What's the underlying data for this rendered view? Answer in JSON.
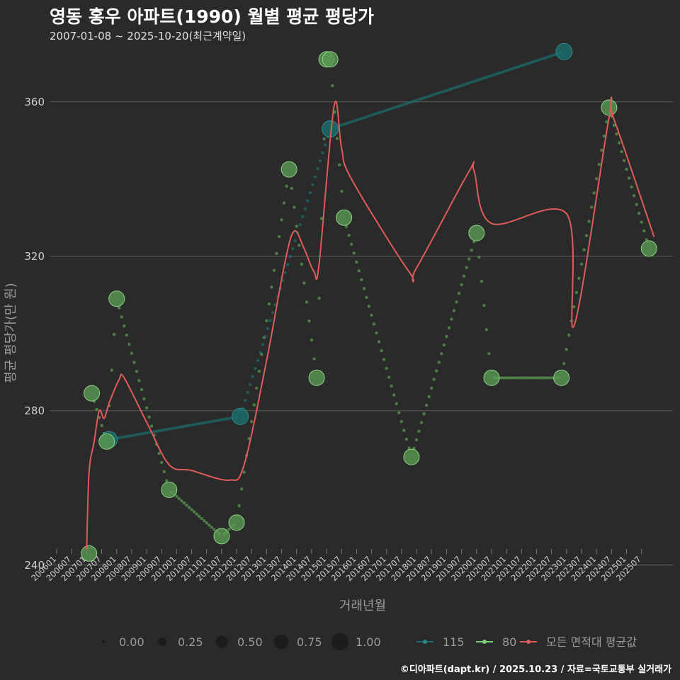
{
  "title": "영동 홍우 아파트(1990) 월별 평균 평당가",
  "subtitle": "2007-01-08 ~ 2025-10-20(최근계약일)",
  "footer": "©디아파트(dapt.kr) / 2025.10.23 / 자료=국토교통부 실거래가",
  "colors": {
    "background": "#2a2a2a",
    "grid": "#5e5e5e",
    "s115": "#1b6b6b",
    "s80": "#5a9a52",
    "s80_line": "#7fd07a",
    "avg": "#e05a5a"
  },
  "chart_data": {
    "type": "line",
    "title": "영동 홍우 아파트(1990) 월별 평균 평당가",
    "xlabel": "거래년월",
    "ylabel": "평균 평당가(만 원)",
    "ylim": [
      235,
      375
    ],
    "yticks": [
      240,
      280,
      320,
      360
    ],
    "xlim": [
      2006.0,
      2026.5
    ],
    "xtick_labels": [
      "200601",
      "200607",
      "200701",
      "200707",
      "200801",
      "200807",
      "200901",
      "200907",
      "201001",
      "201007",
      "201101",
      "201107",
      "201201",
      "201207",
      "201301",
      "201307",
      "201401",
      "201407",
      "201501",
      "201507",
      "201601",
      "201607",
      "201701",
      "201707",
      "201801",
      "201807",
      "201901",
      "201907",
      "202001",
      "202007",
      "202101",
      "202107",
      "202201",
      "202207",
      "202301",
      "202307",
      "202401",
      "202407",
      "202501",
      "202507"
    ],
    "legend": {
      "size_title": "",
      "size_labels": [
        "0.00",
        "0.25",
        "0.50",
        "0.75",
        "1.00"
      ],
      "series_labels": [
        "115",
        "80",
        "모든 면적대 평균값"
      ]
    },
    "series": [
      {
        "name": "115",
        "points": [
          {
            "x": 2007.75,
            "y": 272.5
          },
          {
            "x": 2012.12,
            "y": 278.5
          },
          {
            "x": 2015.12,
            "y": 353
          },
          {
            "x": 2022.92,
            "y": 373
          }
        ]
      },
      {
        "name": "80",
        "points": [
          {
            "x": 2007.08,
            "y": 243
          },
          {
            "x": 2007.17,
            "y": 284.5
          },
          {
            "x": 2007.67,
            "y": 272
          },
          {
            "x": 2008.0,
            "y": 309
          },
          {
            "x": 2009.75,
            "y": 259.5
          },
          {
            "x": 2011.5,
            "y": 247.5
          },
          {
            "x": 2012.0,
            "y": 251
          },
          {
            "x": 2013.75,
            "y": 342.5
          },
          {
            "x": 2014.67,
            "y": 288.5
          },
          {
            "x": 2015.0,
            "y": 371
          },
          {
            "x": 2015.12,
            "y": 371
          },
          {
            "x": 2015.58,
            "y": 330
          },
          {
            "x": 2017.83,
            "y": 268
          },
          {
            "x": 2020.0,
            "y": 326
          },
          {
            "x": 2020.5,
            "y": 288.5
          },
          {
            "x": 2022.83,
            "y": 288.5
          },
          {
            "x": 2024.42,
            "y": 358.5
          },
          {
            "x": 2025.75,
            "y": 322
          }
        ]
      },
      {
        "name": "모든 면적대 평균값",
        "points": [
          {
            "x": 2007.0,
            "y": 244
          },
          {
            "x": 2007.08,
            "y": 264
          },
          {
            "x": 2007.25,
            "y": 272
          },
          {
            "x": 2007.42,
            "y": 280
          },
          {
            "x": 2007.58,
            "y": 278
          },
          {
            "x": 2007.75,
            "y": 282
          },
          {
            "x": 2008.08,
            "y": 288
          },
          {
            "x": 2008.25,
            "y": 288.5
          },
          {
            "x": 2009.0,
            "y": 277
          },
          {
            "x": 2009.75,
            "y": 266
          },
          {
            "x": 2010.5,
            "y": 264.5
          },
          {
            "x": 2011.75,
            "y": 262
          },
          {
            "x": 2012.25,
            "y": 266
          },
          {
            "x": 2013.0,
            "y": 293
          },
          {
            "x": 2013.6,
            "y": 318
          },
          {
            "x": 2013.92,
            "y": 326.5
          },
          {
            "x": 2014.25,
            "y": 322
          },
          {
            "x": 2014.58,
            "y": 316
          },
          {
            "x": 2014.75,
            "y": 318
          },
          {
            "x": 2015.25,
            "y": 359
          },
          {
            "x": 2015.5,
            "y": 348
          },
          {
            "x": 2015.83,
            "y": 340
          },
          {
            "x": 2017.75,
            "y": 316
          },
          {
            "x": 2018.0,
            "y": 317
          },
          {
            "x": 2019.75,
            "y": 342
          },
          {
            "x": 2019.92,
            "y": 342
          },
          {
            "x": 2020.5,
            "y": 328.5
          },
          {
            "x": 2023.0,
            "y": 331
          },
          {
            "x": 2023.25,
            "y": 302
          },
          {
            "x": 2024.42,
            "y": 356
          },
          {
            "x": 2024.58,
            "y": 355.5
          },
          {
            "x": 2025.92,
            "y": 325
          }
        ]
      }
    ]
  }
}
